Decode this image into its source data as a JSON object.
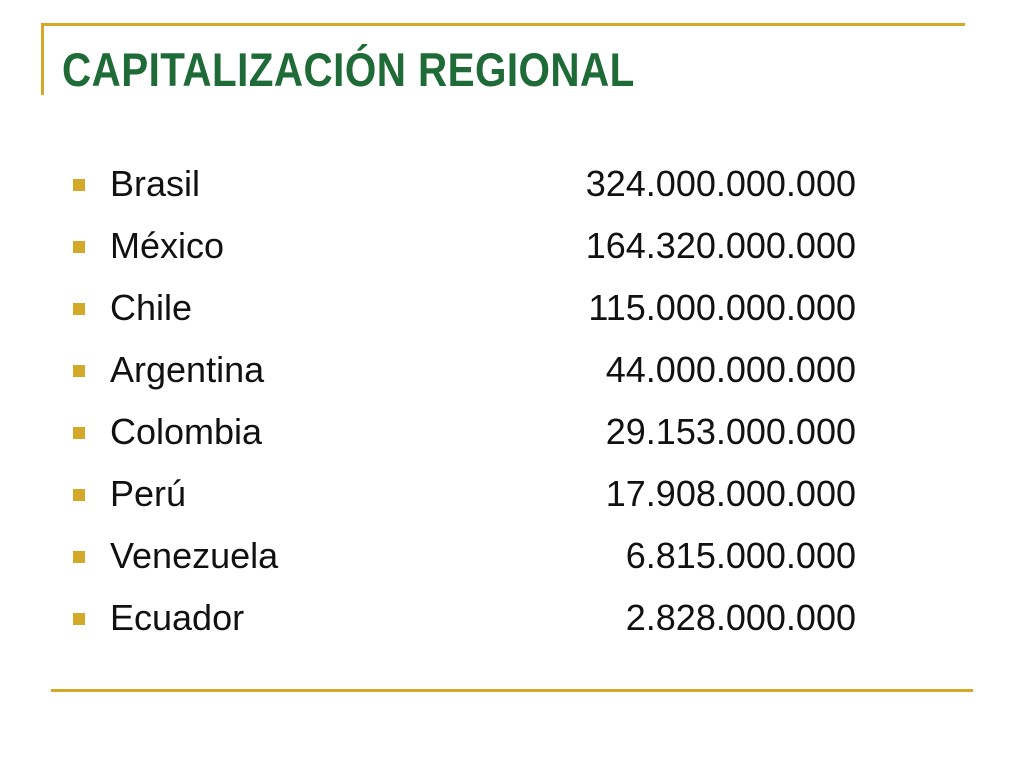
{
  "slide": {
    "title": "CAPITALIZACIÓN REGIONAL",
    "accent_color": "#d4a92a",
    "title_color": "#1e6b38",
    "items": [
      {
        "country": "Brasil",
        "value": "324.000.000.000"
      },
      {
        "country": "México",
        "value": "164.320.000.000"
      },
      {
        "country": "Chile",
        "value": "115.000.000.000"
      },
      {
        "country": "Argentina",
        "value": "44.000.000.000"
      },
      {
        "country": "Colombia",
        "value": "29.153.000.000"
      },
      {
        "country": "Perú",
        "value": "17.908.000.000"
      },
      {
        "country": "Venezuela",
        "value": "6.815.000.000"
      },
      {
        "country": "Ecuador",
        "value": "2.828.000.000"
      }
    ]
  }
}
